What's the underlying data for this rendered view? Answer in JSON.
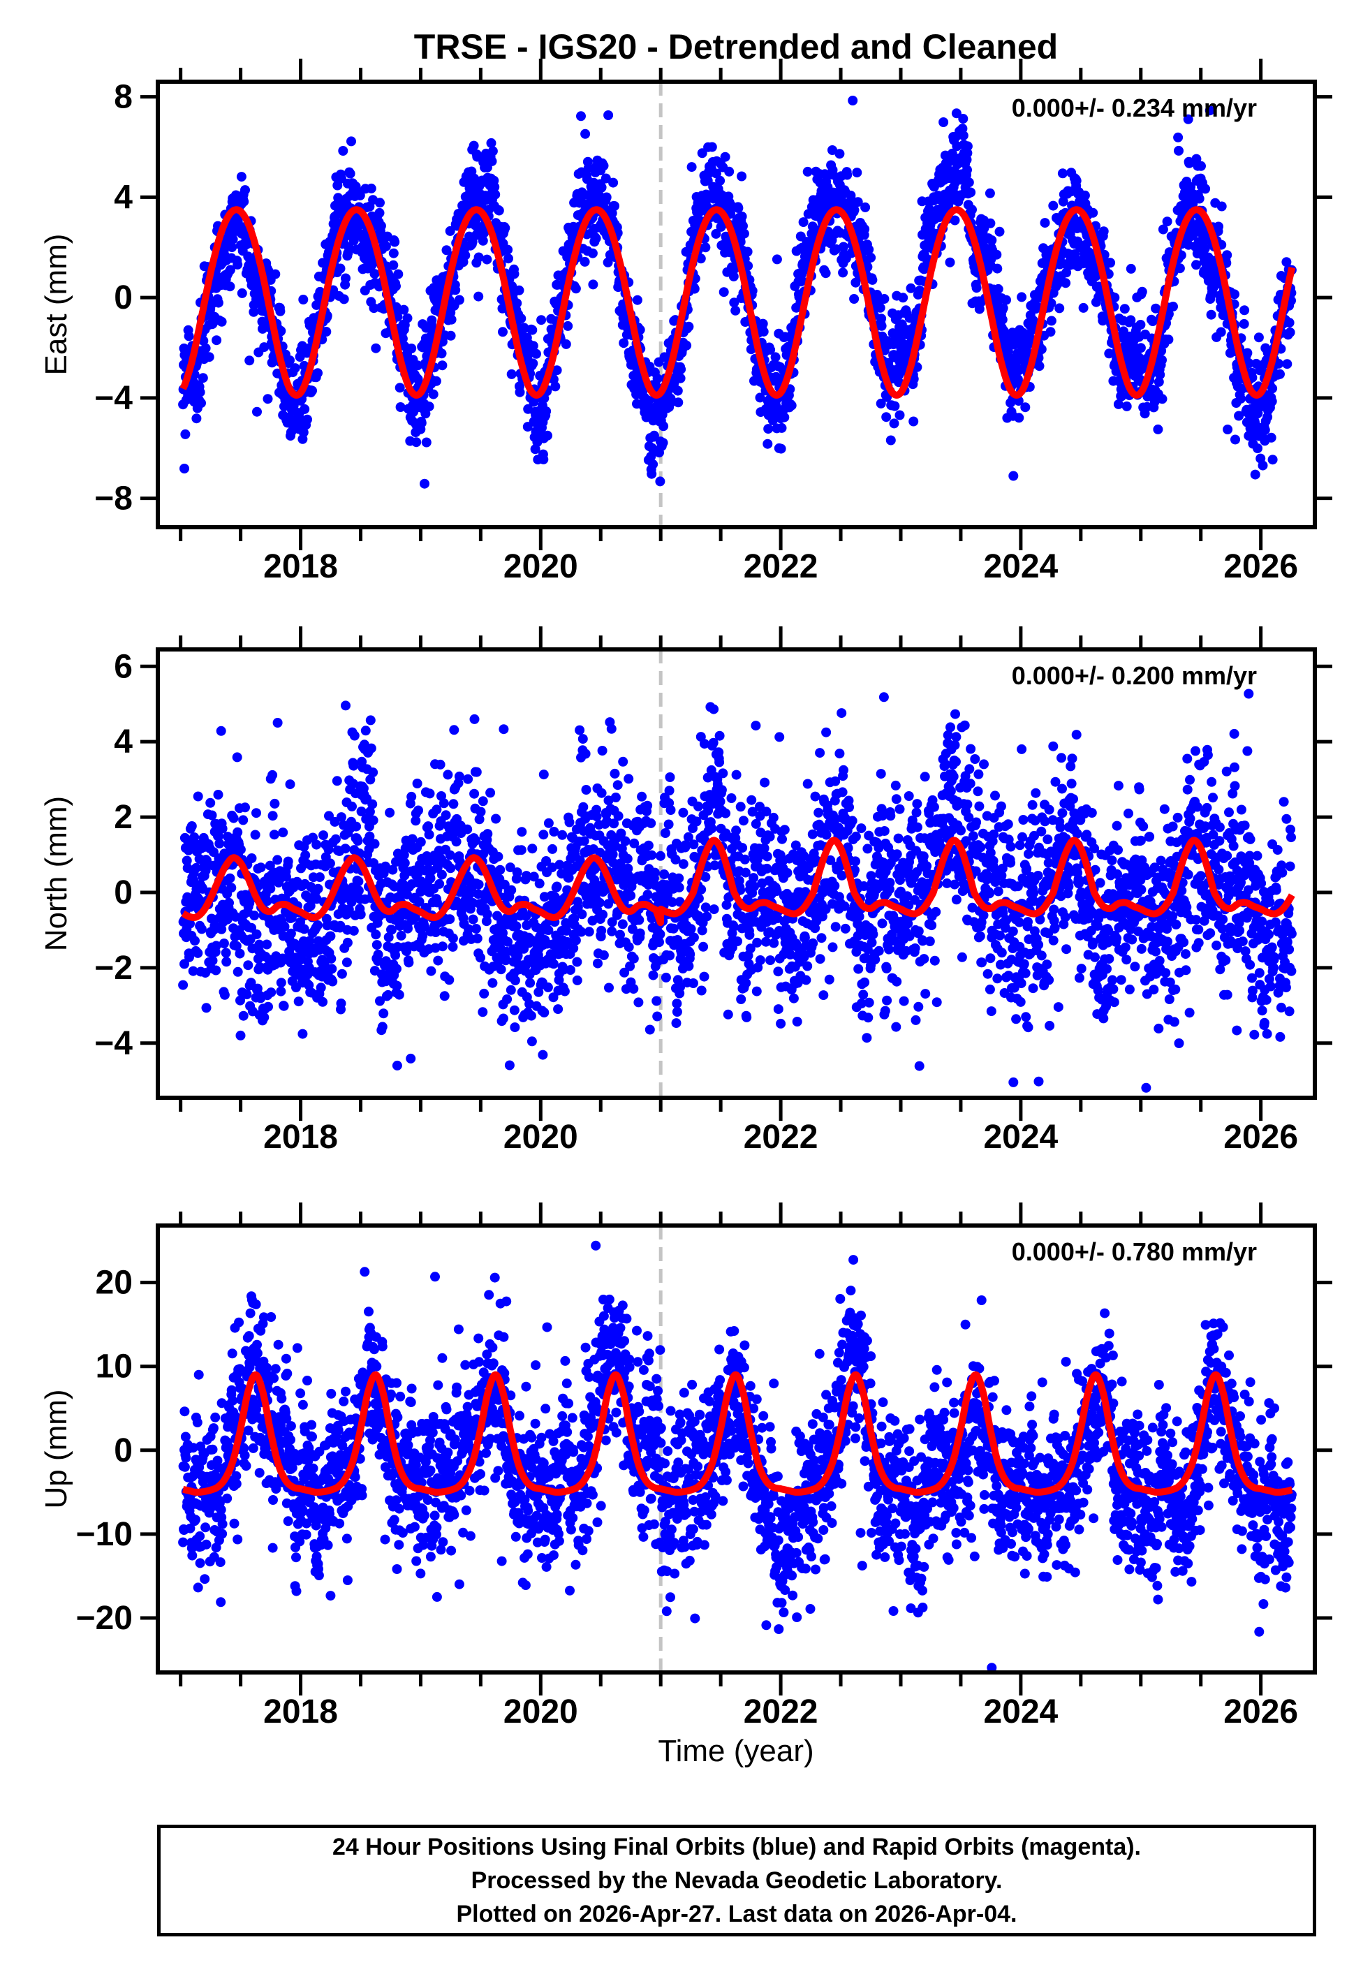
{
  "title": "TRSE - IGS20 - Detrended and Cleaned",
  "x_axis_label": "Time (year)",
  "footer": {
    "line1": "24 Hour Positions Using Final Orbits (blue) and Rapid Orbits (magenta).",
    "line2": "Processed by the Nevada Geodetic Laboratory.",
    "line3": "Plotted on 2026-Apr-27. Last data on 2026-Apr-04."
  },
  "colors": {
    "final_orbit_points": "#0000ff",
    "rapid_orbit_points": "#ff00ff",
    "model_curve": "#ff0000",
    "break_line": "#c4c4c4",
    "frame": "#000000",
    "background": "#ffffff"
  },
  "chart_data": {
    "type": "scatter",
    "description": "Daily GPS position time series for station TRSE in IGS20 frame, detrended and cleaned; three stacked panels (East, North, Up) with blue daily point scatter, red seasonal model curve, and gray dashed step/break line at 2021.0.",
    "station": "TRSE",
    "reference_frame": "IGS20",
    "x_range": [
      2016.81,
      2026.45
    ],
    "x_major_ticks": [
      2018,
      2020,
      2022,
      2024,
      2026
    ],
    "x_minor_tick_step": 0.5,
    "x_minor_tick_range": [
      2017.0,
      2026.0
    ],
    "data_time_span": [
      2017.02,
      2026.26
    ],
    "sample_interval_days": 1,
    "points_per_panel": 3375,
    "break_line_t": 2021.0,
    "panels": [
      {
        "id": "east",
        "ylabel": "East (mm)",
        "annotation": "0.000+/- 0.234 mm/yr",
        "rate_mm_per_yr": 0.0,
        "rate_sigma_mm_per_yr": 0.234,
        "ylim": [
          -9.15,
          8.6
        ],
        "yticks": [
          -8,
          -4,
          0,
          4,
          8
        ],
        "seasonal_profile_phase": [
          0,
          0.0833,
          0.1667,
          0.25,
          0.3333,
          0.4167,
          0.5,
          0.5833,
          0.6667,
          0.75,
          0.8333,
          0.9167
        ],
        "seasonal_profile_mm": [
          -3.79,
          -2.74,
          -0.95,
          0.99,
          2.52,
          3.37,
          3.43,
          2.7,
          1.27,
          -0.63,
          -2.5,
          -3.7
        ],
        "noise": {
          "white_sd_mm": 0.95,
          "walk_innov_mm": 0.16,
          "walk_phi": 0.975,
          "outlier_fraction": 0.05,
          "outlier_scale": 2.6
        },
        "seed": 101
      },
      {
        "id": "north",
        "ylabel": "North (mm)",
        "annotation": "0.000+/- 0.200 mm/yr",
        "rate_mm_per_yr": 0.0,
        "rate_sigma_mm_per_yr": 0.2,
        "ylim": [
          -5.45,
          6.45
        ],
        "yticks": [
          -4,
          -2,
          0,
          2,
          4,
          6
        ],
        "seasonal_profile_phase": [
          0,
          0.0625,
          0.125,
          0.1875,
          0.25,
          0.3125,
          0.375,
          0.4375,
          0.5,
          0.5625,
          0.625,
          0.6875,
          0.75,
          0.8125,
          0.875,
          0.9375
        ],
        "seasonal_profile_mm": [
          -0.52,
          -0.63,
          -0.66,
          -0.5,
          -0.15,
          0.3,
          0.7,
          0.92,
          0.78,
          0.38,
          -0.1,
          -0.43,
          -0.5,
          -0.35,
          -0.32,
          -0.43
        ],
        "post_break": {
          "pos_scale": 1.5,
          "neg_scale": 0.85
        },
        "pre_break_notch_mm": 0.3,
        "noise": {
          "white_sd_mm": 1.25,
          "walk_innov_mm": 0.14,
          "walk_phi": 0.975,
          "outlier_fraction": 0.05,
          "outlier_scale": 2.1
        },
        "seed": 202
      },
      {
        "id": "up",
        "ylabel": "Up (mm)",
        "annotation": "0.000+/- 0.780 mm/yr",
        "rate_mm_per_yr": 0.0,
        "rate_sigma_mm_per_yr": 0.78,
        "ylim": [
          -26.5,
          26.8
        ],
        "yticks": [
          -20,
          -10,
          0,
          10,
          20
        ],
        "seasonal_profile_phase": [
          0,
          0.0625,
          0.125,
          0.1875,
          0.25,
          0.3125,
          0.375,
          0.4375,
          0.5,
          0.5625,
          0.625,
          0.6875,
          0.75,
          0.8125,
          0.875,
          0.9375
        ],
        "seasonal_profile_mm": [
          -4.6,
          -4.8,
          -5.0,
          -4.95,
          -4.75,
          -4.35,
          -3.3,
          -1.2,
          2.6,
          7.0,
          9.0,
          6.8,
          2.2,
          -1.6,
          -3.6,
          -4.4
        ],
        "noise": {
          "white_sd_mm": 4.4,
          "walk_innov_mm": 0.6,
          "walk_phi": 0.975,
          "outlier_fraction": 0.05,
          "outlier_scale": 2.0
        },
        "seed": 303
      }
    ],
    "layout": {
      "plot_left": 226,
      "plot_right": 1883,
      "panel_tops": [
        117,
        930,
        1755
      ],
      "panel_bottoms": [
        755,
        1572,
        2395
      ],
      "x_tick_len_major": 30,
      "x_tick_len_minor": 17,
      "y_tick_len": 22,
      "frame_stroke": 6,
      "tick_stroke": 5,
      "point_radius": 7,
      "curve_stroke": 10,
      "break_dash": "20 11",
      "grid": "off",
      "legend": "none"
    }
  }
}
